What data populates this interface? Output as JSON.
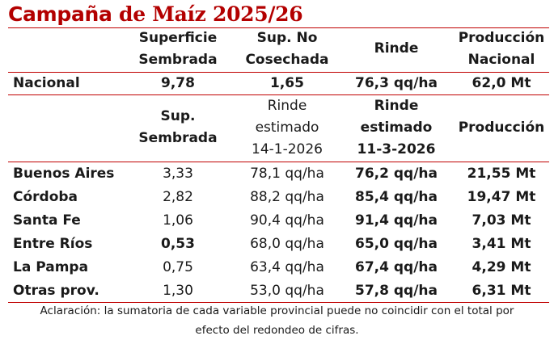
{
  "title_part1": "Campaña ",
  "title_part2": "de Maíz 2025/26",
  "header1": {
    "c1": [
      "Superficie",
      "Sembrada"
    ],
    "c2": [
      "Sup. No",
      "Cosechada"
    ],
    "c3": "Rinde",
    "c4": [
      "Producción",
      "Nacional"
    ]
  },
  "nacional": {
    "label": "Nacional",
    "values": [
      "9,78",
      "1,65",
      "76,3 qq/ha",
      "62,0 Mt"
    ]
  },
  "header2": {
    "c1": [
      "Sup.",
      "Sembrada"
    ],
    "c2": [
      "Rinde",
      "estimado",
      "14-1-2026"
    ],
    "c3": [
      "Rinde",
      "estimado",
      "11-3-2026"
    ],
    "c4": "Producción"
  },
  "provinces": [
    {
      "name": "Buenos Aires",
      "sup": "3,33",
      "r1": "78,1 qq/ha",
      "r2": "76,2 qq/ha",
      "prod": "21,55 Mt"
    },
    {
      "name": "Córdoba",
      "sup": "2,82",
      "r1": "88,2 qq/ha",
      "r2": "85,4 qq/ha",
      "prod": "19,47 Mt"
    },
    {
      "name": "Santa Fe",
      "sup": "1,06",
      "r1": "90,4 qq/ha",
      "r2": "91,4 qq/ha",
      "prod": "7,03 Mt"
    },
    {
      "name": "Entre Ríos",
      "sup": "0,53",
      "r1": "68,0 qq/ha",
      "r2": "65,0 qq/ha",
      "prod": "3,41 Mt"
    },
    {
      "name": "La Pampa",
      "sup": "0,75",
      "r1": "63,4 qq/ha",
      "r2": "67,4 qq/ha",
      "prod": "4,29 Mt"
    },
    {
      "name": "Otras prov.",
      "sup": "1,30",
      "r1": "53,0 qq/ha",
      "r2": "57,8 qq/ha",
      "prod": "6,31 Mt"
    }
  ],
  "note_line1": "Aclaración: la sumatoria de cada variable provincial puede no coincidir con el total por",
  "note_line2": "efecto del redondeo de cifras."
}
